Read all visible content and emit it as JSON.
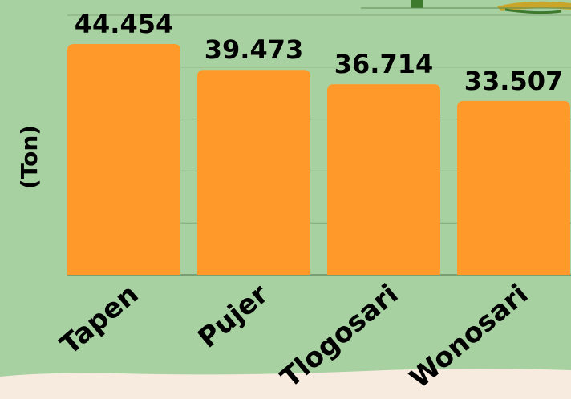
{
  "chart_data": {
    "type": "bar",
    "y_label": "(Ton)",
    "categories": [
      "Tapen",
      "Pujer",
      "Tlogosari",
      "Wonosari"
    ],
    "values": [
      44.454,
      39.473,
      36.714,
      33.507
    ],
    "color": "#ff9a2a",
    "ylim": [
      0,
      50
    ],
    "yticks": [
      0,
      10,
      20,
      30,
      40,
      50
    ],
    "grid": true
  }
}
